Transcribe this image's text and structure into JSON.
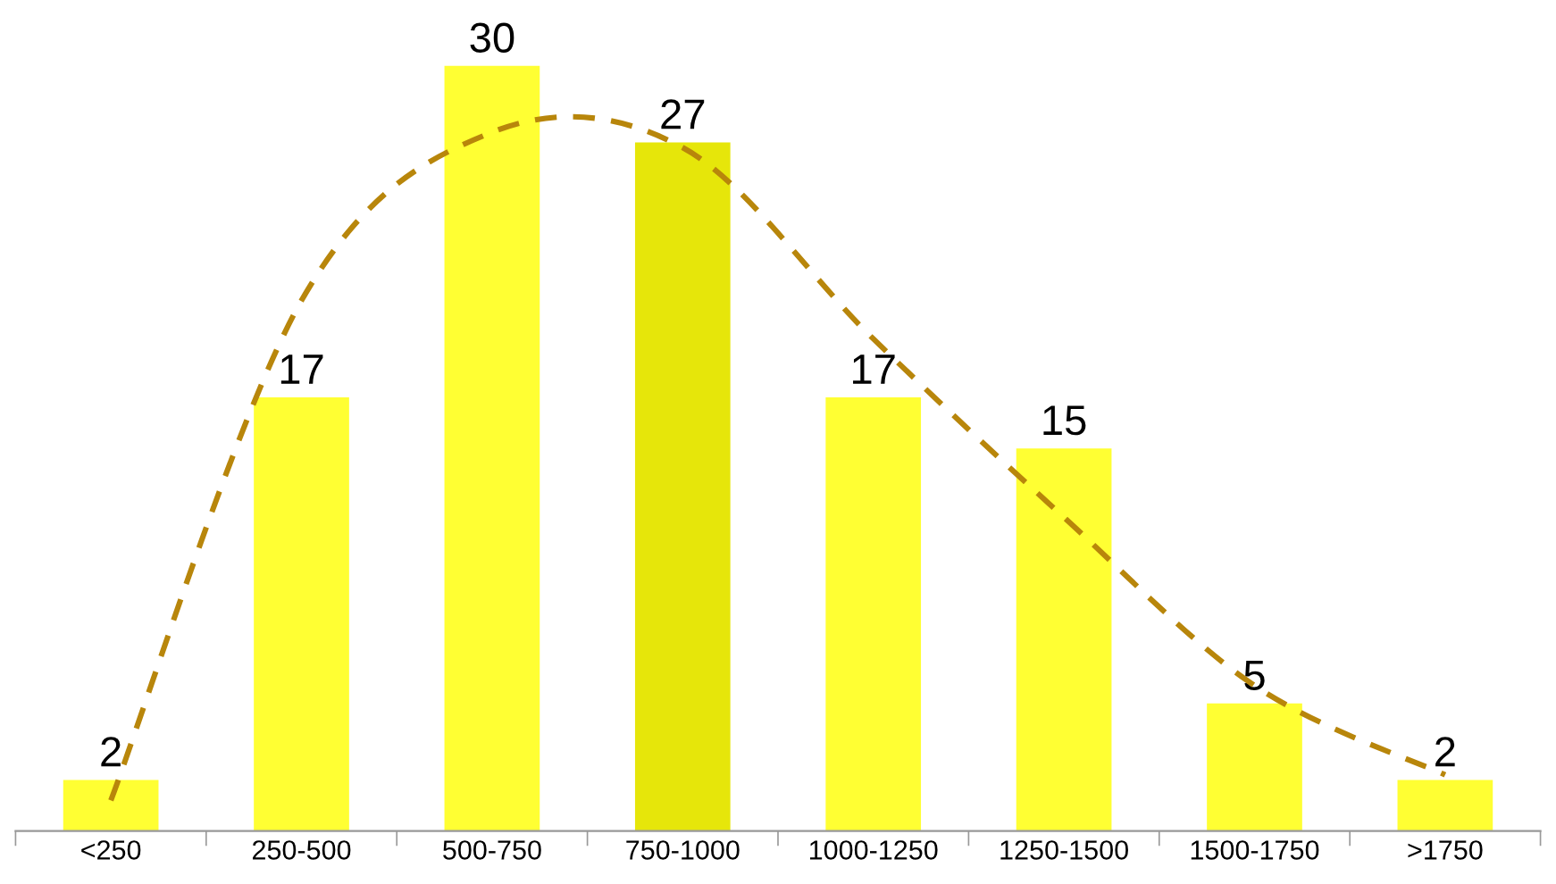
{
  "chart_data": {
    "type": "bar",
    "categories": [
      "<250",
      "250-500",
      "500-750",
      "750-1000",
      "1000-1250",
      "1250-1500",
      "1500-1750",
      ">1750"
    ],
    "grid": false,
    "series": [
      {
        "colors": [
          "#ffff33",
          "#ffff33",
          "#ffff33",
          "#e6e60a",
          "#ffff33",
          "#ffff33",
          "#ffff33",
          "#ffff33"
        ],
        "values": [
          2,
          17,
          30,
          27,
          17,
          15,
          5,
          2
        ],
        "value_labels": [
          "2",
          "17",
          "30",
          "27",
          "17",
          "15",
          "5",
          "2"
        ]
      },
      {
        "type": "line",
        "color": "#b8860b",
        "line_style": "dashed",
        "marker": "none",
        "values": [
          1.2,
          20.8,
          27.4,
          26.8,
          19.3,
          12.3,
          5.7,
          2.2
        ]
      }
    ]
  }
}
